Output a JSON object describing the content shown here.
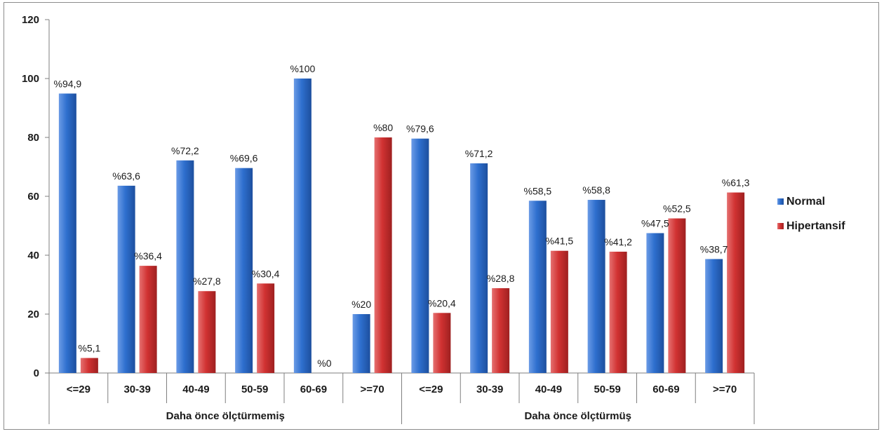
{
  "chart_data": {
    "type": "bar",
    "title": "",
    "xlabel": "",
    "ylabel": "",
    "ylim": [
      0,
      120
    ],
    "yticks": [
      0,
      20,
      40,
      60,
      80,
      100,
      120
    ],
    "grid": false,
    "legend_position": "right",
    "groups": [
      {
        "label": "Daha önce ölçtürmemiş",
        "categories": [
          "<=29",
          "30-39",
          "40-49",
          "50-59",
          "60-69",
          ">=70"
        ]
      },
      {
        "label": "Daha önce ölçtürmüş",
        "categories": [
          "<=29",
          "30-39",
          "40-49",
          "50-59",
          "60-69",
          ">=70"
        ]
      }
    ],
    "series": [
      {
        "name": "Normal",
        "color": "#2e6fce",
        "values": [
          94.9,
          63.6,
          72.2,
          69.6,
          100,
          20,
          79.6,
          71.2,
          58.5,
          58.8,
          47.5,
          38.7
        ],
        "labels": [
          "%94,9",
          "%63,6",
          "%72,2",
          "%69,6",
          "%100",
          "%20",
          "%79,6",
          "%71,2",
          "%58,5",
          "%58,8",
          "%47,5",
          "%38,7"
        ]
      },
      {
        "name": "Hipertansif",
        "color": "#d13232",
        "values": [
          5.1,
          36.4,
          27.8,
          30.4,
          0,
          80,
          20.4,
          28.8,
          41.5,
          41.2,
          52.5,
          61.3
        ],
        "labels": [
          "%5,1",
          "%36,4",
          "%27,8",
          "%30,4",
          "%0",
          "%80",
          "%20,4",
          "%28,8",
          "%41,5",
          "%41,2",
          "%52,5",
          "%61,3"
        ]
      }
    ]
  }
}
